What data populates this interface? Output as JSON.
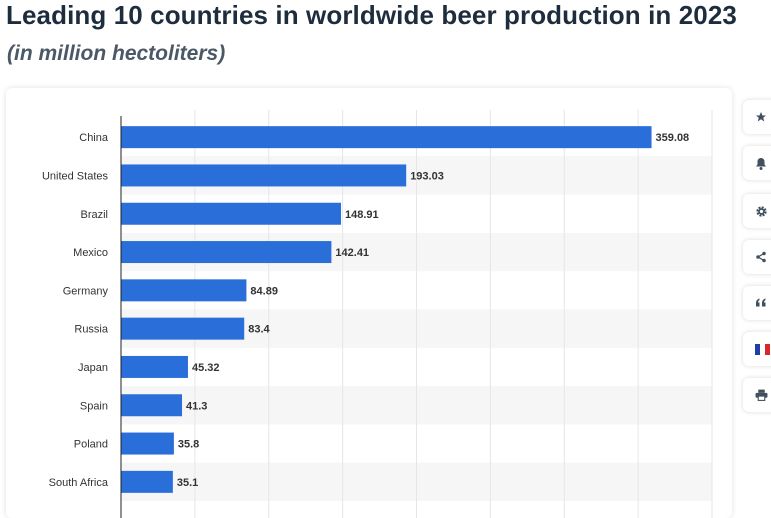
{
  "header": {
    "title": "Leading 10 countries in worldwide beer production in 2023",
    "subtitle": "(in million hectoliters)"
  },
  "toolbar": {
    "items": [
      {
        "icon": "star-icon",
        "name": "favorite-button"
      },
      {
        "icon": "bell-icon",
        "name": "notification-button"
      },
      {
        "icon": "gear-icon",
        "name": "settings-button"
      },
      {
        "icon": "share-icon",
        "name": "share-button"
      },
      {
        "icon": "quote-icon",
        "name": "citation-button"
      },
      {
        "icon": "french-flag-icon",
        "name": "language-button"
      },
      {
        "icon": "printer-icon",
        "name": "print-button"
      }
    ]
  },
  "colors": {
    "bar": "#2a6fd9",
    "grid": "#e3e6ea",
    "band": "#f6f6f6",
    "text": "#333333"
  },
  "chart_data": {
    "type": "bar",
    "orientation": "horizontal",
    "title": "Leading 10 countries in worldwide beer production in 2023",
    "subtitle": "(in million hectoliters)",
    "categories": [
      "China",
      "United States",
      "Brazil",
      "Mexico",
      "Germany",
      "Russia",
      "Japan",
      "Spain",
      "Poland",
      "South Africa"
    ],
    "values": [
      359.08,
      193.03,
      148.91,
      142.41,
      84.89,
      83.4,
      45.32,
      41.3,
      35.8,
      35.1
    ],
    "value_labels": [
      "359.08",
      "193.03",
      "148.91",
      "142.41",
      "84.89",
      "83.4",
      "45.32",
      "41.3",
      "35.8",
      "35.1"
    ],
    "xlim": [
      0,
      400
    ],
    "grid": true,
    "data_labels": true
  }
}
